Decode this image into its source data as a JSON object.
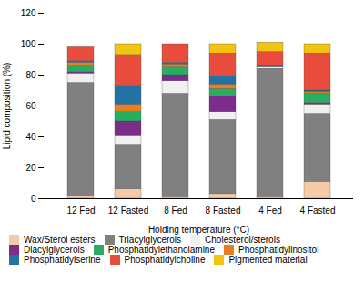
{
  "chart_data": {
    "type": "bar",
    "stacked": true,
    "xlabel": "Holding temperature (°C)",
    "ylabel": "Lipid composition (%)",
    "categories": [
      "12 Fed",
      "12 Fasted",
      "8 Fed",
      "8 Fasted",
      "4 Fed",
      "4 Fasted"
    ],
    "series": [
      {
        "name": "Wax/Sterol esters",
        "color": "#f5cba7",
        "values": [
          2,
          6,
          1,
          3,
          1,
          11
        ]
      },
      {
        "name": "Triacylglycerols",
        "color": "#808080",
        "values": [
          73,
          29,
          67,
          48,
          83,
          44
        ]
      },
      {
        "name": "Cholesterol/sterols",
        "color": "#f0f0f0",
        "values": [
          6,
          6,
          8,
          5,
          1,
          6
        ]
      },
      {
        "name": "Diacylglycerols",
        "color": "#7b2d8b",
        "values": [
          1,
          9,
          4,
          10,
          0,
          1
        ]
      },
      {
        "name": "Phosphatidylethanolamine",
        "color": "#27ae60",
        "values": [
          4,
          6,
          5,
          5,
          0,
          6
        ]
      },
      {
        "name": "Phosphatidylinositol",
        "color": "#e67e22",
        "values": [
          2,
          5,
          2,
          3,
          0,
          1
        ]
      },
      {
        "name": "Phosphatidylserine",
        "color": "#2471a3",
        "values": [
          1,
          12,
          1,
          5,
          1,
          1
        ]
      },
      {
        "name": "Phosphatidylcholine",
        "color": "#e74c3c",
        "values": [
          9,
          20,
          12,
          15,
          9,
          24
        ]
      },
      {
        "name": "Pigmented material",
        "color": "#f1c40f",
        "values": [
          0,
          7,
          0,
          6,
          6,
          6
        ]
      }
    ],
    "ylim": [
      0,
      120
    ],
    "yticks": [
      0,
      20,
      40,
      60,
      80,
      100,
      120
    ],
    "legend": "bottom"
  }
}
